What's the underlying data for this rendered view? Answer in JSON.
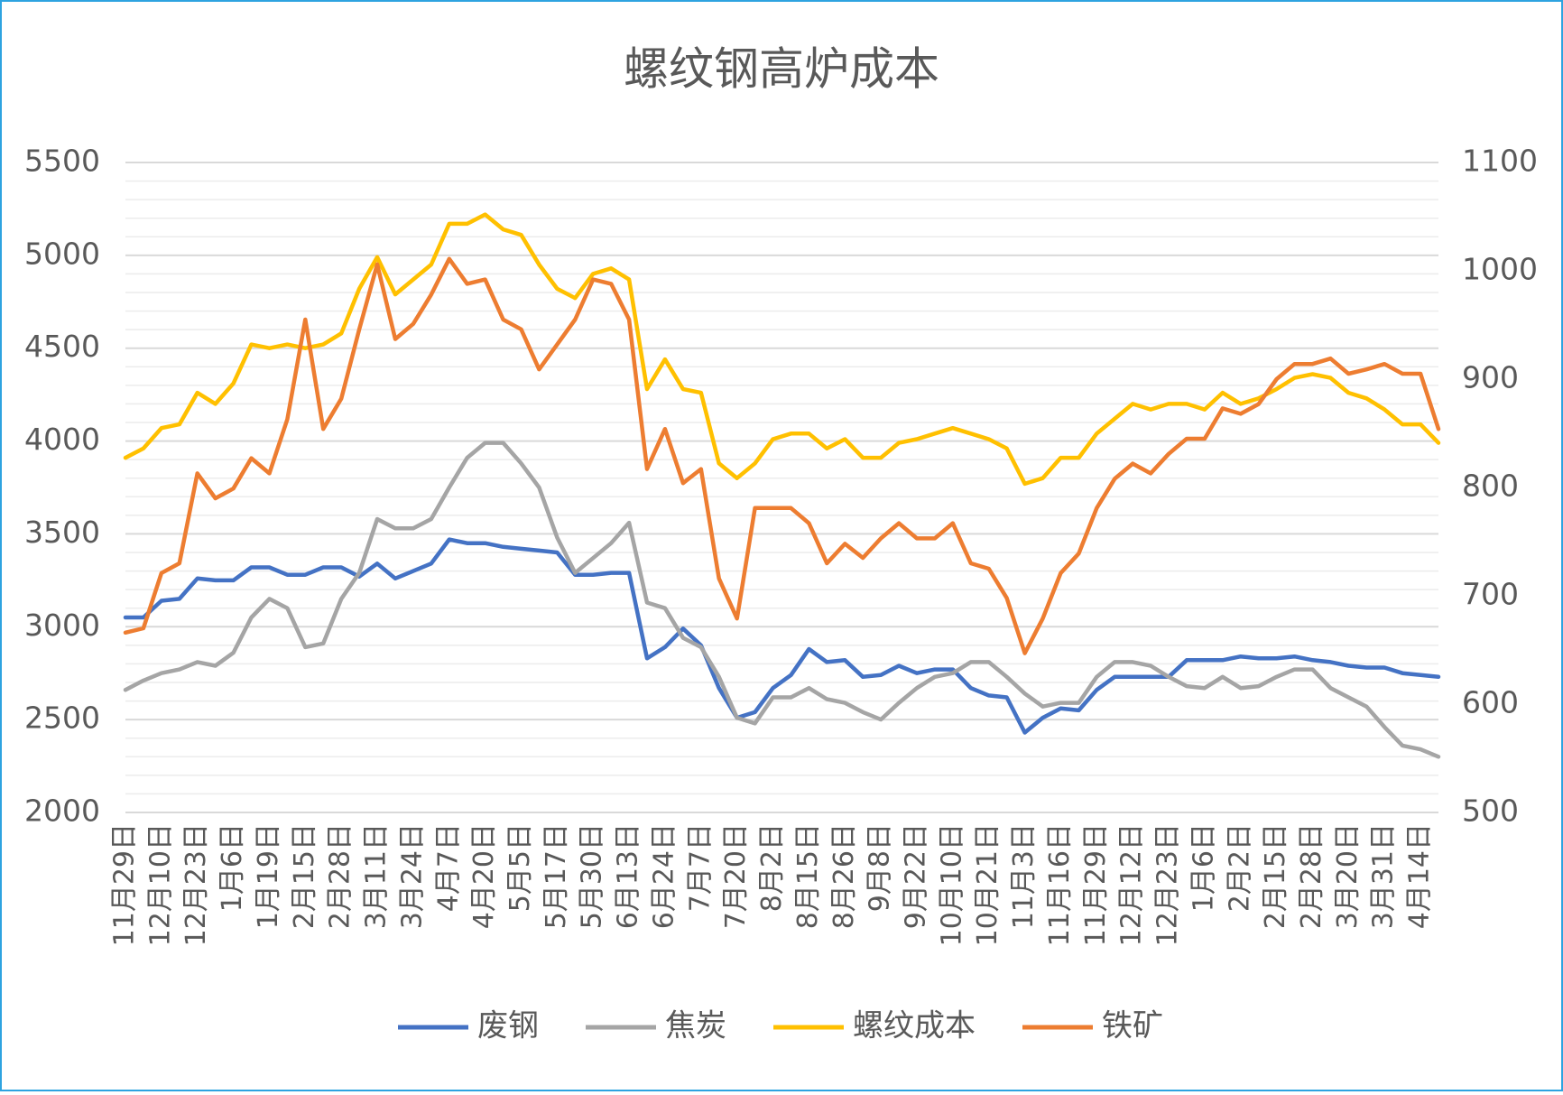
{
  "chart_data": {
    "type": "line",
    "title": "螺纹钢高炉成本",
    "categories": [
      "11月29日",
      null,
      "12月10日",
      null,
      "12月23日",
      null,
      "1月6日",
      null,
      "1月19日",
      null,
      "2月15日",
      null,
      "2月28日",
      null,
      "3月11日",
      null,
      "3月24日",
      null,
      "4月7日",
      null,
      "4月20日",
      null,
      "5月5日",
      null,
      "5月17日",
      null,
      "5月30日",
      null,
      "6月13日",
      null,
      "6月24日",
      null,
      "7月7日",
      null,
      "7月20日",
      null,
      "8月2日",
      null,
      "8月15日",
      null,
      "8月26日",
      null,
      "9月8日",
      null,
      "9月22日",
      null,
      "10月10日",
      null,
      "10月21日",
      null,
      "11月3日",
      null,
      "11月16日",
      null,
      "11月29日",
      null,
      "12月12日",
      null,
      "12月23日",
      null,
      "1月6日",
      null,
      "2月2日",
      null,
      "2月15日",
      null,
      "2月28日",
      null,
      "3月20日",
      null,
      "3月31日",
      null,
      "4月14日",
      null
    ],
    "series": [
      {
        "name": "废钢",
        "color": "#4472c4",
        "values": [
          3050,
          3050,
          3140,
          3150,
          3260,
          3250,
          3250,
          3320,
          3320,
          3280,
          3280,
          3320,
          3320,
          3270,
          3340,
          3260,
          3300,
          3340,
          3470,
          3450,
          3450,
          3430,
          3420,
          3410,
          3400,
          3280,
          3280,
          3290,
          3290,
          2830,
          2890,
          2990,
          2900,
          2670,
          2510,
          2540,
          2670,
          2740,
          2880,
          2810,
          2820,
          2730,
          2740,
          2790,
          2750,
          2770,
          2770,
          2670,
          2630,
          2620,
          2430,
          2510,
          2560,
          2550,
          2660,
          2730,
          2730,
          2730,
          2730,
          2820,
          2820,
          2820,
          2840,
          2830,
          2830,
          2840,
          2820,
          2810,
          2790,
          2780,
          2780,
          2750,
          2740,
          2730
        ]
      },
      {
        "name": "焦炭",
        "color": "#a5a5a5",
        "values": [
          2660,
          2710,
          2750,
          2770,
          2810,
          2790,
          2860,
          3050,
          3150,
          3100,
          2890,
          2910,
          3150,
          3290,
          3580,
          3530,
          3530,
          3580,
          3750,
          3910,
          3990,
          3990,
          3880,
          3750,
          3480,
          3290,
          3370,
          3450,
          3560,
          3130,
          3100,
          2940,
          2890,
          2730,
          2510,
          2480,
          2620,
          2620,
          2670,
          2610,
          2590,
          2540,
          2500,
          2590,
          2670,
          2730,
          2750,
          2810,
          2810,
          2730,
          2640,
          2570,
          2590,
          2590,
          2730,
          2810,
          2810,
          2790,
          2730,
          2680,
          2670,
          2730,
          2670,
          2680,
          2730,
          2770,
          2770,
          2670,
          2620,
          2570,
          2460,
          2360,
          2340,
          2300
        ]
      },
      {
        "name": "螺纹成本",
        "color": "#ffc000",
        "values": [
          3910,
          3960,
          4070,
          4090,
          4260,
          4200,
          4310,
          4520,
          4500,
          4520,
          4500,
          4520,
          4580,
          4820,
          4990,
          4790,
          4870,
          4950,
          5170,
          5170,
          5220,
          5140,
          5110,
          4950,
          4820,
          4770,
          4900,
          4930,
          4870,
          4280,
          4440,
          4280,
          4260,
          3880,
          3800,
          3880,
          4010,
          4040,
          4040,
          3960,
          4010,
          3910,
          3910,
          3990,
          4010,
          4040,
          4070,
          4040,
          4010,
          3960,
          3770,
          3800,
          3910,
          3910,
          4040,
          4120,
          4200,
          4170,
          4200,
          4200,
          4170,
          4260,
          4200,
          4230,
          4280,
          4340,
          4360,
          4340,
          4260,
          4230,
          4170,
          4090,
          4090,
          3990
        ]
      },
      {
        "name": "铁矿",
        "color": "#ed7d31",
        "axis": "y2",
        "values": [
          666,
          670,
          721,
          730,
          813,
          790,
          799,
          827,
          813,
          863,
          955,
          854,
          882,
          946,
          1006,
          937,
          951,
          978,
          1011,
          988,
          992,
          955,
          946,
          909,
          932,
          955,
          992,
          988,
          955,
          817,
          854,
          804,
          817,
          716,
          679,
          781,
          781,
          781,
          767,
          730,
          748,
          735,
          753,
          767,
          753,
          753,
          767,
          730,
          725,
          698,
          647,
          679,
          721,
          739,
          781,
          808,
          822,
          813,
          831,
          845,
          845,
          873,
          868,
          877,
          900,
          914,
          914,
          919,
          905,
          909,
          914,
          905,
          905,
          854
        ]
      }
    ],
    "ylim": [
      2000,
      5500
    ],
    "yticks": [
      2000,
      2500,
      3000,
      3500,
      4000,
      4500,
      5000,
      5500
    ],
    "yminorticks": [
      2100,
      2200,
      2300,
      2400,
      2600,
      2700,
      2800,
      2900,
      3100,
      3200,
      3300,
      3400,
      3600,
      3700,
      3800,
      3900,
      4100,
      4200,
      4300,
      4400,
      4600,
      4700,
      4800,
      4900,
      5100,
      5200,
      5300,
      5400
    ],
    "y2lim": [
      500,
      1100
    ],
    "y2ticks": [
      500,
      600,
      700,
      800,
      900,
      1000,
      1100
    ],
    "grid": true,
    "legend": "bottom"
  }
}
